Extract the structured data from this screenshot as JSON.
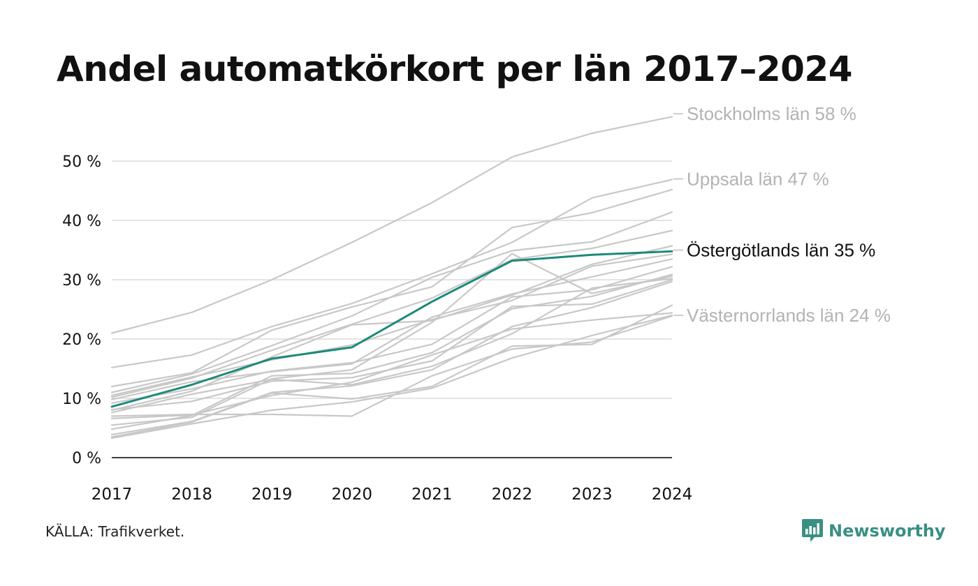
{
  "title": "Andel automatkörkort per län 2017–2024",
  "source": "KÄLLA: Trafikverket.",
  "brand": {
    "name": "Newsworthy",
    "color": "#3a8f83"
  },
  "colors": {
    "highlight": "#1b8a7a",
    "muted": "#c8c8c8",
    "muted_label": "#b3b3b3",
    "grid": "#e3e3e3",
    "axis": "#000000"
  },
  "chart_data": {
    "type": "line",
    "title": "Andel automatkörkort per län 2017–2024",
    "x": [
      2017,
      2018,
      2019,
      2020,
      2021,
      2022,
      2023,
      2024
    ],
    "ylim": [
      0,
      60
    ],
    "yticks": [
      0,
      10,
      20,
      30,
      40,
      50
    ],
    "ytick_labels": [
      "0 %",
      "10 %",
      "20 %",
      "30 %",
      "40 %",
      "50 %"
    ],
    "grid": true,
    "highlight": "Östergötlands län",
    "end_labels": [
      {
        "series": "Stockholms län",
        "text": "Stockholms län 58 %",
        "value": 58
      },
      {
        "series": "Uppsala län",
        "text": "Uppsala län 47 %",
        "value": 47
      },
      {
        "series": "Östergötlands län",
        "text": "Östergötlands län 35 %",
        "value": 35
      },
      {
        "series": "Västernorrlands län",
        "text": "Västernorrlands län 24 %",
        "value": 24
      }
    ],
    "series": [
      {
        "name": "Stockholms län",
        "values": [
          21,
          24.5,
          30,
          36.3,
          43,
          50.7,
          54.7,
          57.5
        ]
      },
      {
        "name": "Uppsala län",
        "values": [
          15.2,
          17.3,
          22.1,
          26,
          31,
          36.3,
          43.8,
          46.9
        ]
      },
      {
        "name": "Östergötlands län",
        "values": [
          8.6,
          12.3,
          16.7,
          18.6,
          26.3,
          33.2,
          34.2,
          34.8
        ]
      },
      {
        "name": "Västernorrlands län",
        "values": [
          6.6,
          7.2,
          10.5,
          12.7,
          17.3,
          21.7,
          23.2,
          24.4
        ]
      },
      {
        "values": [
          12,
          14.3,
          21.5,
          25.4,
          28.8,
          38.8,
          41.3,
          45.2
        ]
      },
      {
        "values": [
          11,
          14.1,
          18.9,
          23.9,
          30.4,
          34.9,
          36.4,
          41.4
        ]
      },
      {
        "values": [
          10.2,
          13.4,
          18.1,
          22.5,
          26.9,
          33.4,
          35.3,
          38.3
        ]
      },
      {
        "values": [
          8,
          11.2,
          17,
          22.4,
          23.1,
          27.4,
          32.6,
          35.7
        ]
      },
      {
        "values": [
          10.5,
          13.6,
          16.5,
          19,
          23.3,
          26.5,
          32.3,
          34.3
        ]
      },
      {
        "values": [
          9.8,
          12.8,
          14.5,
          15.8,
          23.7,
          27.6,
          30.5,
          33.5
        ]
      },
      {
        "values": [
          9.2,
          11.6,
          14.6,
          16,
          19.1,
          27.1,
          28.3,
          32.2
        ]
      },
      {
        "values": [
          4.8,
          7.1,
          13.8,
          14.2,
          17.7,
          25.1,
          27.2,
          30.9
        ]
      },
      {
        "values": [
          5.5,
          6.8,
          13.3,
          14.8,
          22.8,
          34.4,
          27.7,
          30.6
        ]
      },
      {
        "values": [
          7.6,
          10.7,
          13.2,
          12.3,
          15.4,
          20.9,
          28.6,
          30.2
        ]
      },
      {
        "values": [
          8.1,
          9.5,
          12.9,
          13.5,
          16.3,
          25.5,
          25.9,
          30
        ]
      },
      {
        "values": [
          3.9,
          6.1,
          11,
          12.1,
          14.8,
          22.1,
          25.3,
          29.7
        ]
      },
      {
        "values": [
          3.5,
          6,
          10.9,
          9.9,
          12,
          18.8,
          19.1,
          25.7
        ]
      },
      {
        "values": [
          3.3,
          5.7,
          8,
          9.4,
          11.7,
          16.8,
          20.6,
          24
        ]
      },
      {
        "values": [
          7,
          7.3,
          7.3,
          7,
          13.8,
          18.3,
          19.5,
          23.9
        ]
      }
    ]
  }
}
